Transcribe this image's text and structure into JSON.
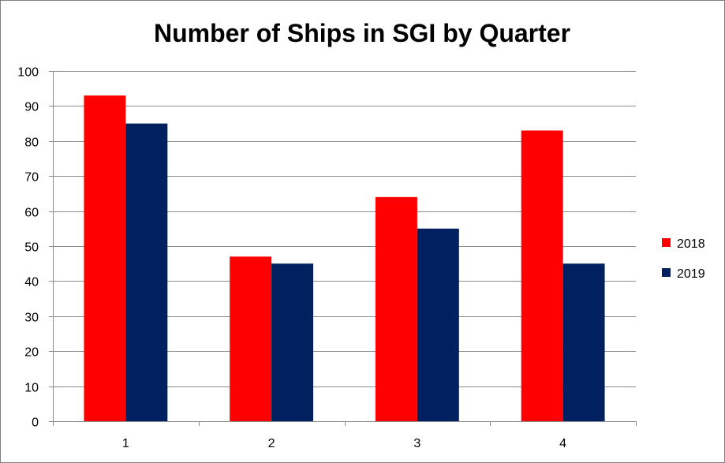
{
  "chart_data": {
    "type": "bar",
    "title": "Number of Ships in SGI by Quarter",
    "xlabel": "",
    "ylabel": "",
    "categories": [
      "1",
      "2",
      "3",
      "4"
    ],
    "series": [
      {
        "name": "2018",
        "values": [
          93,
          47,
          64,
          83
        ],
        "color": "#ff0000"
      },
      {
        "name": "2019",
        "values": [
          85,
          45,
          55,
          45
        ],
        "color": "#002060"
      }
    ],
    "ylim": [
      0,
      100
    ],
    "yticks": [
      0,
      10,
      20,
      30,
      40,
      50,
      60,
      70,
      80,
      90,
      100
    ],
    "grid": true,
    "legend_position": "right"
  }
}
